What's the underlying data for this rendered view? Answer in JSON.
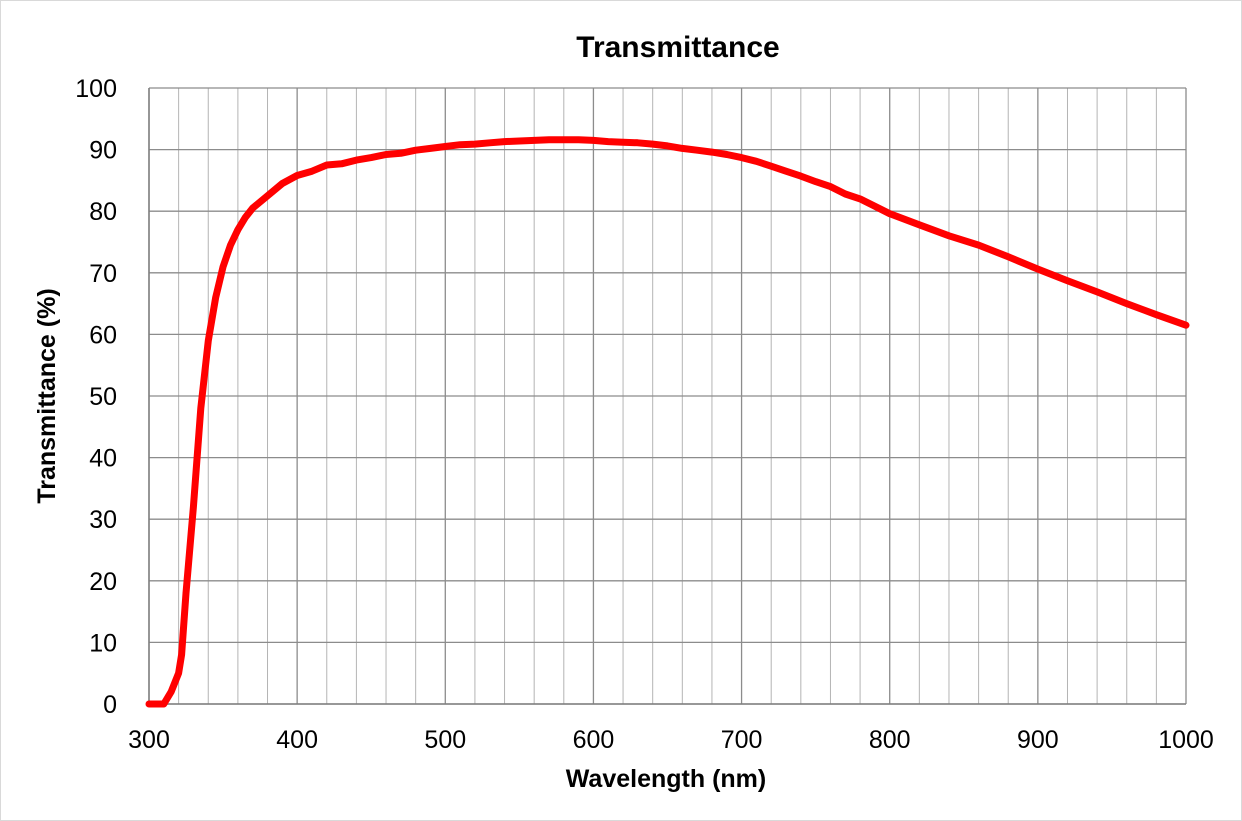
{
  "chart_data": {
    "type": "line",
    "title": "Transmittance",
    "xlabel": "Wavelength (nm)",
    "ylabel": "Transmittance (%)",
    "xlim": [
      300,
      1000
    ],
    "ylim": [
      0,
      100
    ],
    "x_ticks": [
      "300",
      "400",
      "500",
      "600",
      "700",
      "800",
      "900",
      "1000"
    ],
    "y_ticks": [
      "0",
      "10",
      "20",
      "30",
      "40",
      "50",
      "60",
      "70",
      "80",
      "90",
      "100"
    ],
    "x_minor_step": 20,
    "grid": true,
    "legend": "none",
    "series": [
      {
        "color": "#ff0000",
        "x": [
          300,
          310,
          315,
          320,
          322,
          325,
          330,
          335,
          340,
          345,
          350,
          355,
          360,
          365,
          370,
          380,
          390,
          400,
          410,
          420,
          430,
          440,
          450,
          460,
          470,
          480,
          490,
          500,
          510,
          520,
          530,
          540,
          550,
          560,
          570,
          580,
          590,
          600,
          610,
          620,
          630,
          640,
          650,
          660,
          670,
          680,
          690,
          700,
          710,
          720,
          730,
          740,
          750,
          760,
          770,
          780,
          790,
          800,
          820,
          840,
          860,
          880,
          900,
          920,
          940,
          960,
          980,
          1000
        ],
        "y": [
          0,
          0,
          2,
          5,
          8,
          18,
          32,
          48,
          59,
          66,
          71,
          74.5,
          77,
          79,
          80.5,
          82.5,
          84.5,
          85.8,
          86.5,
          87.5,
          87.7,
          88.3,
          88.7,
          89.2,
          89.4,
          89.9,
          90.2,
          90.5,
          90.8,
          90.9,
          91.1,
          91.3,
          91.4,
          91.5,
          91.6,
          91.6,
          91.6,
          91.5,
          91.3,
          91.2,
          91.1,
          90.9,
          90.6,
          90.2,
          89.9,
          89.6,
          89.2,
          88.7,
          88.1,
          87.3,
          86.5,
          85.7,
          84.8,
          84,
          82.8,
          82,
          80.8,
          79.6,
          77.8,
          76,
          74.5,
          72.6,
          70.6,
          68.7,
          66.9,
          65,
          63.2,
          61.5
        ]
      }
    ]
  }
}
